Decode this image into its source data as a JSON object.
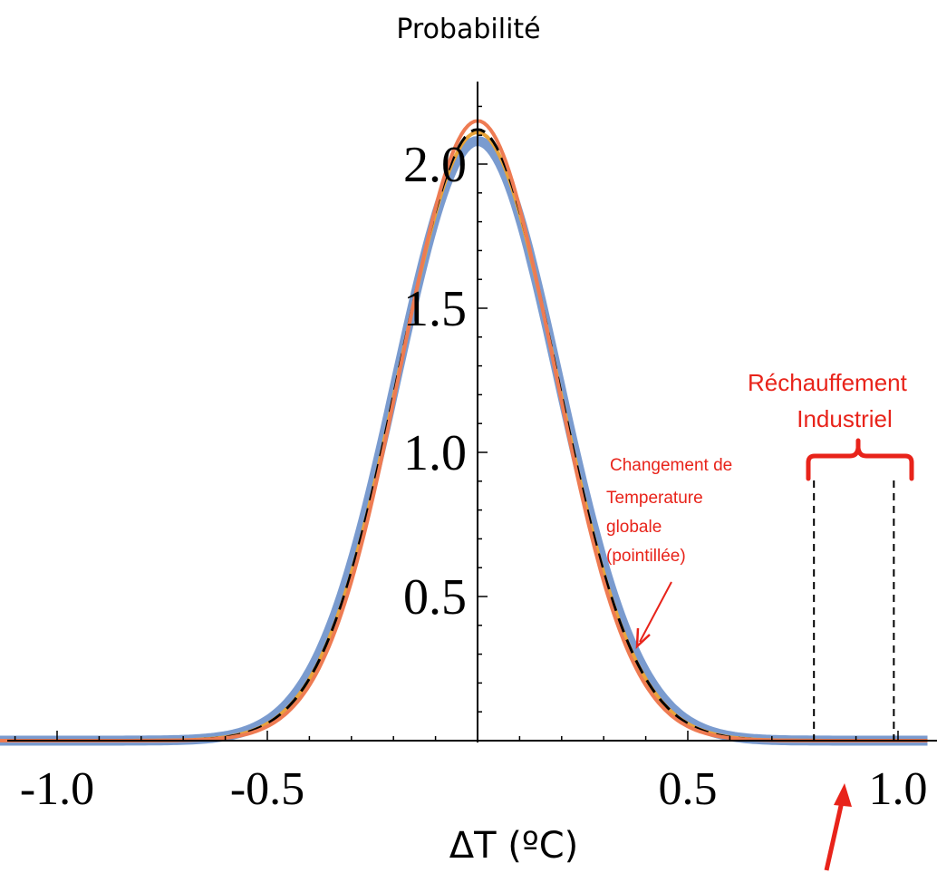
{
  "chart_data": {
    "type": "line",
    "title": "Probabilité",
    "xlabel": "ΔT (ºC)",
    "ylabel": "",
    "xlim": [
      -1.15,
      1.07
    ],
    "ylim": [
      0,
      2.3
    ],
    "x_ticks": [
      "-1.0",
      "-0.5",
      "0.5",
      "1.0"
    ],
    "x_tick_values": [
      -1.0,
      -0.5,
      0.5,
      1.0
    ],
    "y_ticks": [
      "0.5",
      "1.0",
      "1.5",
      "2.0"
    ],
    "y_tick_values": [
      0.5,
      1.0,
      1.5,
      2.0
    ],
    "grid": false,
    "series": [
      {
        "color": "#7a9bcf",
        "style": "thick",
        "peak": 2.08,
        "sigma": 0.192
      },
      {
        "color": "#e8a33a",
        "style": "solid",
        "peak": 2.11,
        "sigma": 0.187
      },
      {
        "color": "#000000",
        "style": "dashed",
        "peak": 2.12,
        "sigma": 0.187
      },
      {
        "color": "#ee7b52",
        "style": "solid",
        "peak": 2.15,
        "sigma": 0.182
      }
    ],
    "vlines": [
      0.8,
      0.99
    ],
    "annotations": {
      "global_change": [
        "Changement de",
        "Temperature",
        "globale",
        "(pointillée)"
      ],
      "industrial_warming": [
        "Réchauffement",
        "Industriel"
      ]
    },
    "colors": {
      "annotation": "#e8231a"
    }
  }
}
